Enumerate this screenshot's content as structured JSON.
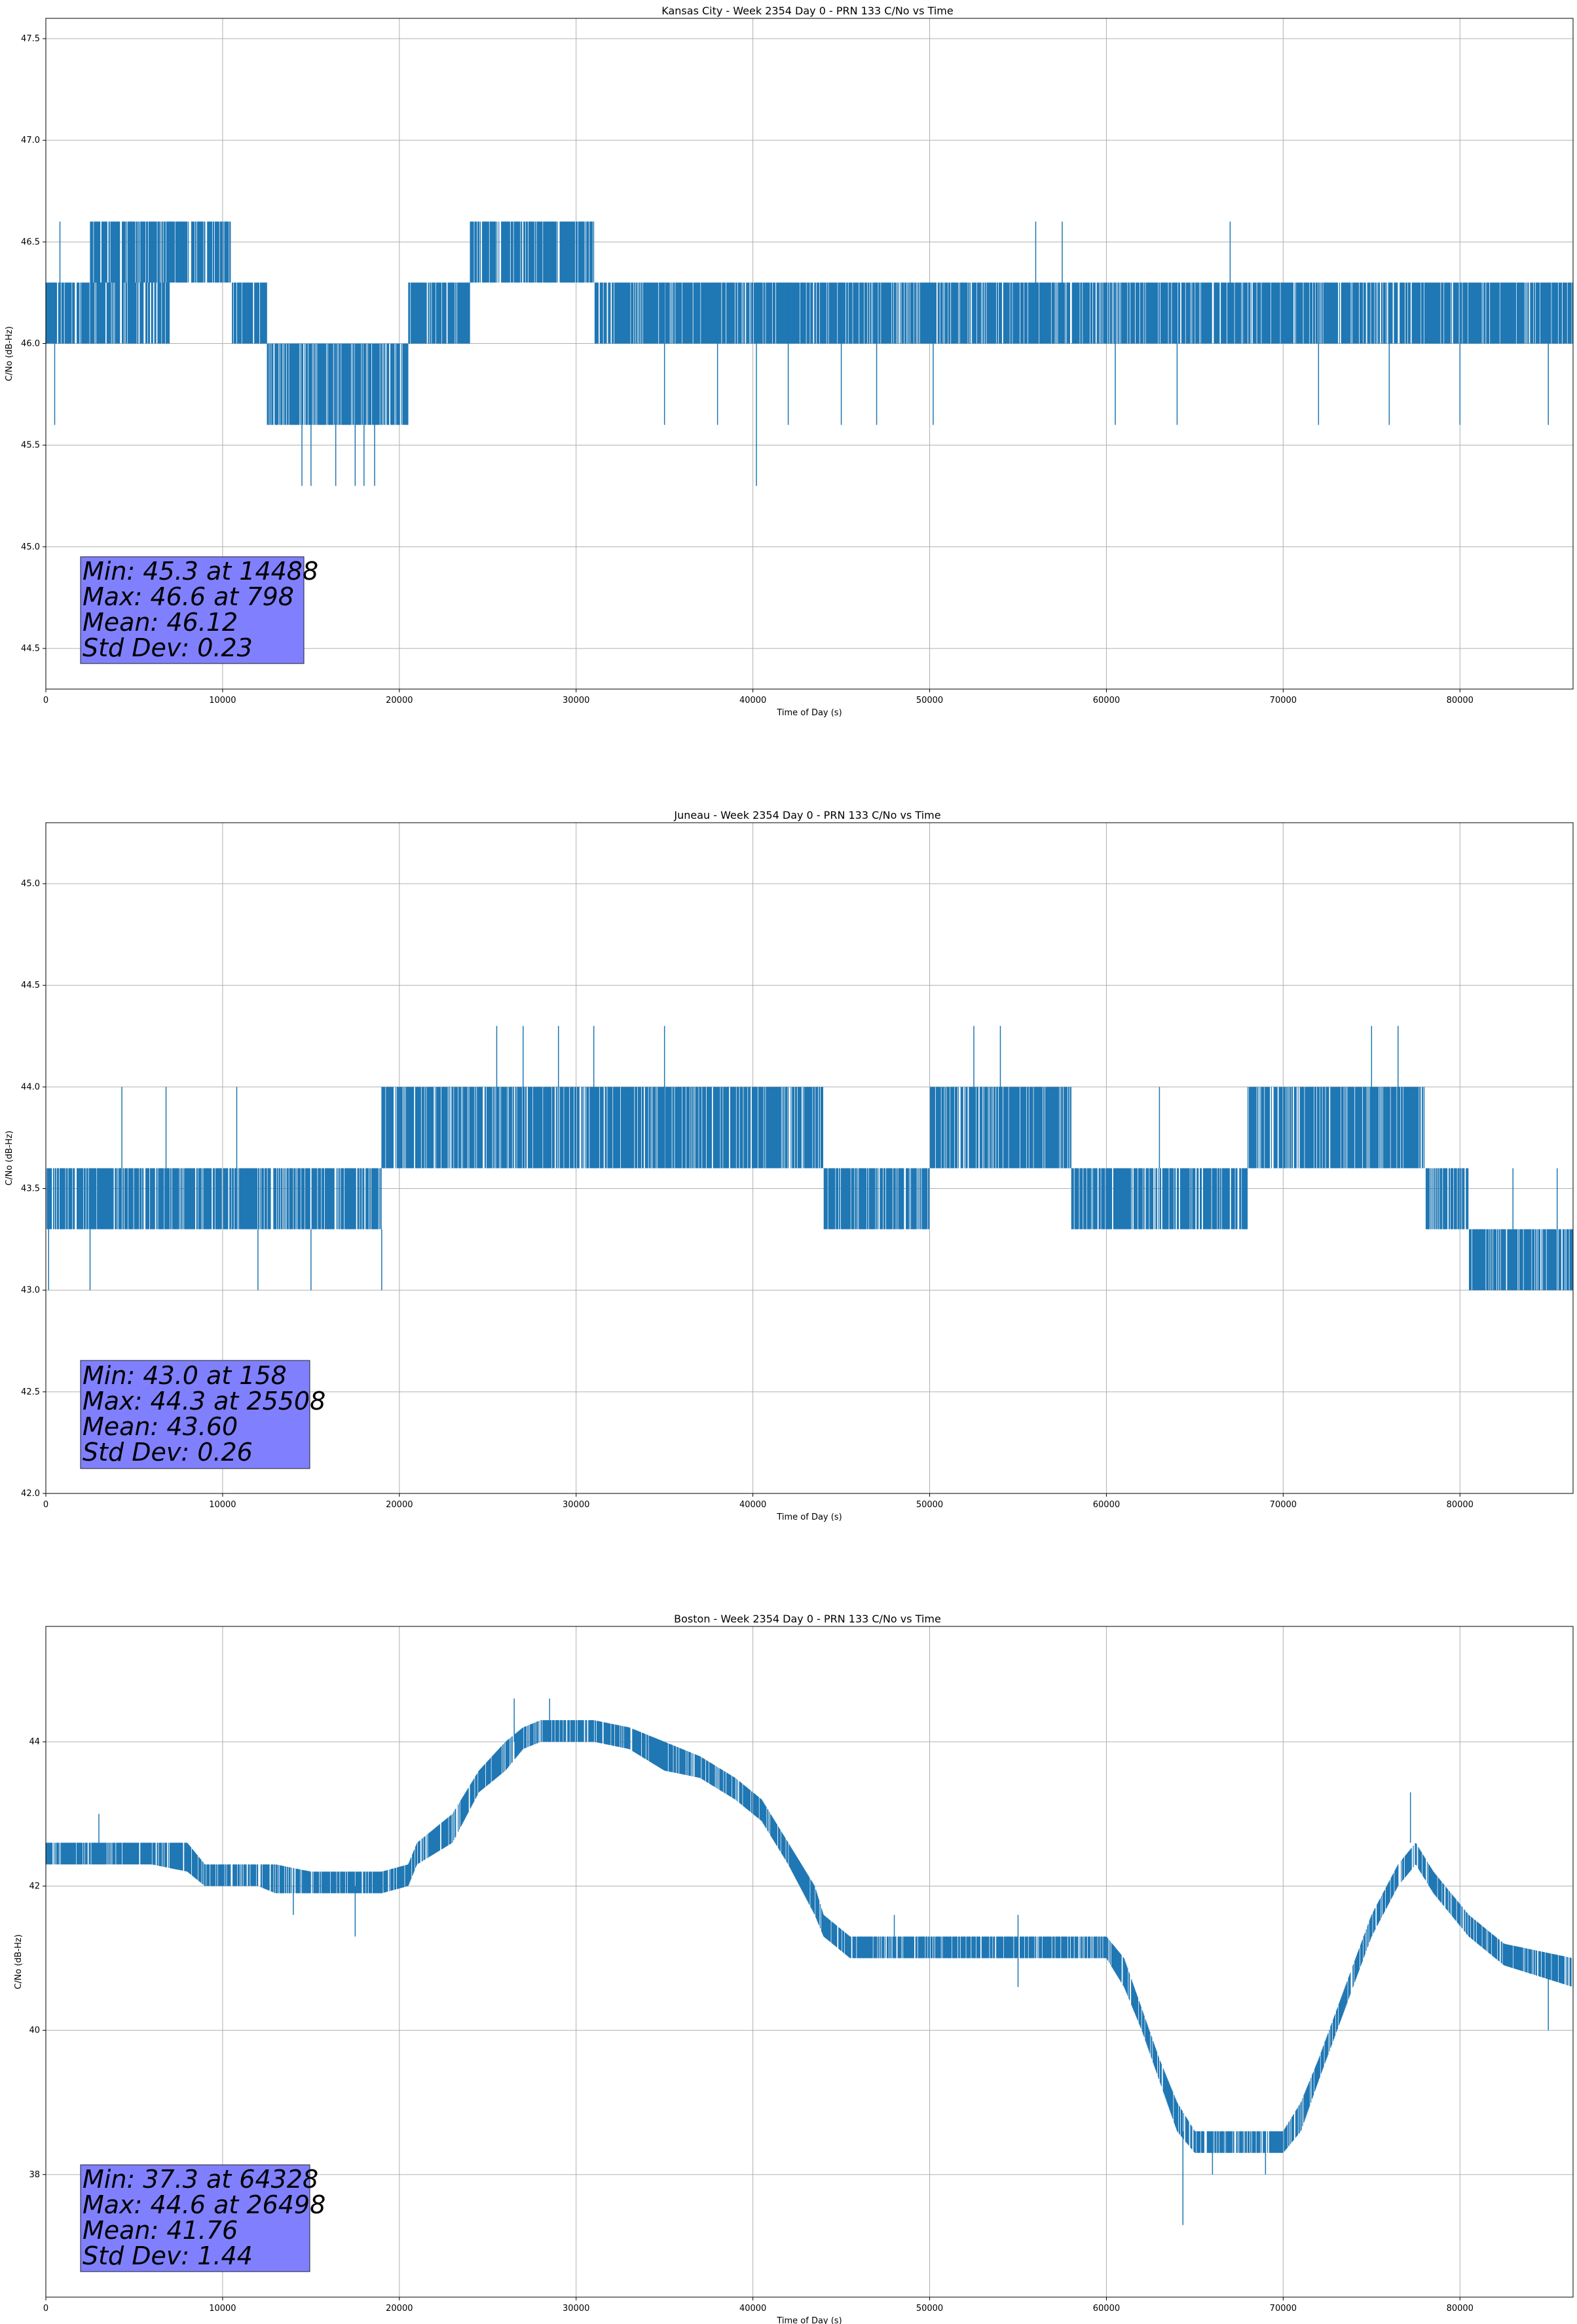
{
  "figure": {
    "line_color": "#1f77b4",
    "grid_color": "#b0b0b0",
    "stats_box_color": "#8080ff"
  },
  "chart_data": [
    {
      "type": "line",
      "title": "Kansas City - Week 2354 Day 0 - PRN 133 C/No vs Time",
      "xlabel": "Time of Day (s)",
      "ylabel": "C/No (dB-Hz)",
      "xlim": [
        0,
        86400
      ],
      "ylim": [
        44.3,
        47.6
      ],
      "xticks": [
        0,
        10000,
        20000,
        30000,
        40000,
        50000,
        60000,
        70000,
        80000
      ],
      "yticks": [
        44.5,
        45.0,
        45.5,
        46.0,
        46.5,
        47.0,
        47.5
      ],
      "ytick_decimals": 1,
      "grid": true,
      "stats_placement": "lower-left",
      "stats": [
        "Min: 45.3 at 14488",
        "Max: 46.6 at 798",
        "Mean: 46.12",
        "Std Dev: 0.23"
      ],
      "band_segments": [
        {
          "x": [
            0,
            7000
          ],
          "low": 46.0,
          "high": 46.3
        },
        {
          "x": [
            2500,
            10500
          ],
          "low": 46.3,
          "high": 46.6
        },
        {
          "x": [
            10500,
            12500
          ],
          "low": 46.0,
          "high": 46.3
        },
        {
          "x": [
            12500,
            20500
          ],
          "low": 45.6,
          "high": 46.0
        },
        {
          "x": [
            20500,
            24000
          ],
          "low": 46.0,
          "high": 46.3
        },
        {
          "x": [
            24000,
            31000
          ],
          "low": 46.3,
          "high": 46.6
        },
        {
          "x": [
            31000,
            86400
          ],
          "low": 46.0,
          "high": 46.3
        }
      ],
      "spikes": [
        {
          "x": 500,
          "low": 45.6,
          "high": 46.3
        },
        {
          "x": 798,
          "low": 46.0,
          "high": 46.6
        },
        {
          "x": 14488,
          "low": 45.3,
          "high": 46.0
        },
        {
          "x": 15000,
          "low": 45.3,
          "high": 46.0
        },
        {
          "x": 16400,
          "low": 45.3,
          "high": 46.0
        },
        {
          "x": 17500,
          "low": 45.3,
          "high": 46.0
        },
        {
          "x": 18000,
          "low": 45.3,
          "high": 46.0
        },
        {
          "x": 18600,
          "low": 45.3,
          "high": 46.0
        },
        {
          "x": 40200,
          "low": 45.3,
          "high": 46.0
        },
        {
          "x": 35000,
          "low": 45.6,
          "high": 46.3
        },
        {
          "x": 38000,
          "low": 45.6,
          "high": 46.3
        },
        {
          "x": 42000,
          "low": 45.6,
          "high": 46.3
        },
        {
          "x": 45000,
          "low": 45.6,
          "high": 46.3
        },
        {
          "x": 47000,
          "low": 45.6,
          "high": 46.3
        },
        {
          "x": 50200,
          "low": 45.6,
          "high": 46.3
        },
        {
          "x": 56000,
          "low": 46.0,
          "high": 46.6
        },
        {
          "x": 57500,
          "low": 46.0,
          "high": 46.6
        },
        {
          "x": 60500,
          "low": 45.6,
          "high": 46.3
        },
        {
          "x": 64000,
          "low": 45.6,
          "high": 46.3
        },
        {
          "x": 67000,
          "low": 46.0,
          "high": 46.6
        },
        {
          "x": 72000,
          "low": 45.6,
          "high": 46.3
        },
        {
          "x": 76000,
          "low": 45.6,
          "high": 46.3
        },
        {
          "x": 80000,
          "low": 45.6,
          "high": 46.3
        },
        {
          "x": 85000,
          "low": 45.6,
          "high": 46.3
        }
      ]
    },
    {
      "type": "line",
      "title": "Juneau - Week 2354 Day 0 - PRN 133 C/No vs Time",
      "xlabel": "Time of Day (s)",
      "ylabel": "C/No (dB-Hz)",
      "xlim": [
        0,
        86400
      ],
      "ylim": [
        42.0,
        45.3
      ],
      "xticks": [
        0,
        10000,
        20000,
        30000,
        40000,
        50000,
        60000,
        70000,
        80000
      ],
      "yticks": [
        42.0,
        42.5,
        43.0,
        43.5,
        44.0,
        44.5,
        45.0
      ],
      "ytick_decimals": 1,
      "grid": true,
      "stats_placement": "lower-left",
      "stats": [
        "Min: 43.0 at 158",
        "Max: 44.3 at 25508",
        "Mean: 43.60",
        "Std Dev: 0.26"
      ],
      "band_segments": [
        {
          "x": [
            0,
            19000
          ],
          "low": 43.3,
          "high": 43.6
        },
        {
          "x": [
            19000,
            44000
          ],
          "low": 43.6,
          "high": 44.0
        },
        {
          "x": [
            44000,
            50000
          ],
          "low": 43.3,
          "high": 43.6
        },
        {
          "x": [
            50000,
            58000
          ],
          "low": 43.6,
          "high": 44.0
        },
        {
          "x": [
            58000,
            68000
          ],
          "low": 43.3,
          "high": 43.6
        },
        {
          "x": [
            68000,
            78000
          ],
          "low": 43.6,
          "high": 44.0
        },
        {
          "x": [
            78000,
            80500
          ],
          "low": 43.3,
          "high": 43.6
        },
        {
          "x": [
            80500,
            86400
          ],
          "low": 43.0,
          "high": 43.3
        }
      ],
      "spikes": [
        {
          "x": 158,
          "low": 43.0,
          "high": 43.6
        },
        {
          "x": 2500,
          "low": 43.0,
          "high": 43.3
        },
        {
          "x": 4300,
          "low": 43.6,
          "high": 44.0
        },
        {
          "x": 6800,
          "low": 43.6,
          "high": 44.0
        },
        {
          "x": 10800,
          "low": 43.6,
          "high": 44.0
        },
        {
          "x": 12000,
          "low": 43.0,
          "high": 43.3
        },
        {
          "x": 15000,
          "low": 43.0,
          "high": 43.3
        },
        {
          "x": 19000,
          "low": 43.0,
          "high": 43.3
        },
        {
          "x": 25508,
          "low": 43.6,
          "high": 44.3
        },
        {
          "x": 27000,
          "low": 43.6,
          "high": 44.3
        },
        {
          "x": 29000,
          "low": 43.6,
          "high": 44.3
        },
        {
          "x": 31000,
          "low": 43.6,
          "high": 44.3
        },
        {
          "x": 35000,
          "low": 43.6,
          "high": 44.3
        },
        {
          "x": 52500,
          "low": 43.6,
          "high": 44.3
        },
        {
          "x": 54000,
          "low": 43.6,
          "high": 44.3
        },
        {
          "x": 75000,
          "low": 43.6,
          "high": 44.3
        },
        {
          "x": 76500,
          "low": 43.6,
          "high": 44.3
        },
        {
          "x": 63000,
          "low": 43.6,
          "high": 44.0
        },
        {
          "x": 83000,
          "low": 43.3,
          "high": 43.6
        },
        {
          "x": 85500,
          "low": 43.3,
          "high": 43.6
        }
      ]
    },
    {
      "type": "line",
      "title": "Boston - Week 2354 Day 0 - PRN 133 C/No vs Time",
      "xlabel": "Time of Day (s)",
      "ylabel": "C/No (dB-Hz)",
      "xlim": [
        0,
        86400
      ],
      "ylim": [
        36.3,
        45.6
      ],
      "xticks": [
        0,
        10000,
        20000,
        30000,
        40000,
        50000,
        60000,
        70000,
        80000
      ],
      "yticks": [
        38,
        40,
        42,
        44
      ],
      "ytick_decimals": 0,
      "grid": true,
      "stats_placement": "lower-left",
      "stats": [
        "Min: 37.3 at 64328",
        "Max: 44.6 at 26498",
        "Mean: 41.76",
        "Std Dev: 1.44"
      ],
      "band_points": [
        [
          0,
          42.3,
          42.6
        ],
        [
          6000,
          42.3,
          42.6
        ],
        [
          8000,
          42.2,
          42.6
        ],
        [
          9000,
          42.0,
          42.3
        ],
        [
          12000,
          42.0,
          42.3
        ],
        [
          13000,
          41.9,
          42.3
        ],
        [
          15000,
          41.9,
          42.2
        ],
        [
          19000,
          41.9,
          42.2
        ],
        [
          20500,
          42.0,
          42.3
        ],
        [
          21000,
          42.3,
          42.6
        ],
        [
          23000,
          42.6,
          43.0
        ],
        [
          24500,
          43.3,
          43.6
        ],
        [
          26000,
          43.6,
          44.0
        ],
        [
          27000,
          43.9,
          44.2
        ],
        [
          28000,
          44.0,
          44.3
        ],
        [
          31000,
          44.0,
          44.3
        ],
        [
          33000,
          43.9,
          44.2
        ],
        [
          35000,
          43.6,
          44.0
        ],
        [
          37000,
          43.5,
          43.8
        ],
        [
          39000,
          43.2,
          43.5
        ],
        [
          40500,
          42.9,
          43.2
        ],
        [
          42000,
          42.3,
          42.6
        ],
        [
          43500,
          41.6,
          42.0
        ],
        [
          44000,
          41.3,
          41.6
        ],
        [
          45500,
          41.0,
          41.3
        ],
        [
          60000,
          41.0,
          41.3
        ],
        [
          61000,
          40.6,
          41.0
        ],
        [
          62000,
          40.0,
          40.3
        ],
        [
          63000,
          39.3,
          39.6
        ],
        [
          64000,
          38.6,
          39.0
        ],
        [
          65000,
          38.3,
          38.6
        ],
        [
          70000,
          38.3,
          38.6
        ],
        [
          71000,
          38.6,
          39.0
        ],
        [
          72000,
          39.3,
          39.6
        ],
        [
          73500,
          40.3,
          40.6
        ],
        [
          75000,
          41.3,
          41.6
        ],
        [
          76500,
          42.0,
          42.3
        ],
        [
          77500,
          42.3,
          42.6
        ],
        [
          78500,
          41.9,
          42.2
        ],
        [
          80500,
          41.3,
          41.6
        ],
        [
          82500,
          40.9,
          41.2
        ],
        [
          86400,
          40.6,
          41.0
        ]
      ],
      "spikes": [
        {
          "x": 3000,
          "low": 42.3,
          "high": 43.0
        },
        {
          "x": 14000,
          "low": 41.6,
          "high": 42.0
        },
        {
          "x": 17500,
          "low": 41.3,
          "high": 42.0
        },
        {
          "x": 26498,
          "low": 44.0,
          "high": 44.6
        },
        {
          "x": 28500,
          "low": 44.0,
          "high": 44.6
        },
        {
          "x": 48000,
          "low": 41.0,
          "high": 41.6
        },
        {
          "x": 55000,
          "low": 40.6,
          "high": 41.6
        },
        {
          "x": 64328,
          "low": 37.3,
          "high": 38.6
        },
        {
          "x": 66000,
          "low": 38.0,
          "high": 38.6
        },
        {
          "x": 69000,
          "low": 38.0,
          "high": 38.6
        },
        {
          "x": 77200,
          "low": 42.6,
          "high": 43.3
        },
        {
          "x": 85000,
          "low": 40.0,
          "high": 41.0
        }
      ]
    }
  ]
}
